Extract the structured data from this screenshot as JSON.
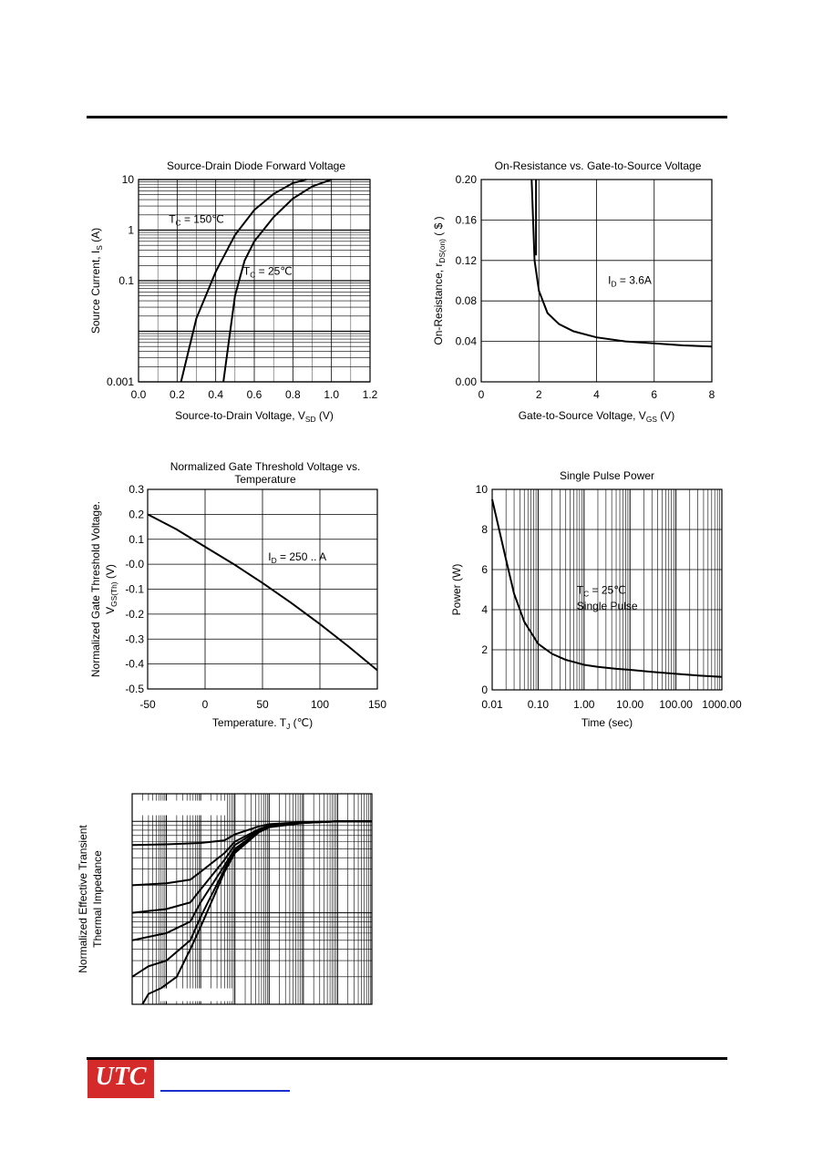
{
  "chart_data": [
    {
      "id": "c1",
      "type": "line",
      "title": "Source-Drain Diode Forward Voltage",
      "xlabel": "Source-to-Drain Voltage, V",
      "xlabel_sub": "SD",
      "xlabel_unit": " (V)",
      "ylabel": "Source Current, I",
      "ylabel_sub": "S",
      "ylabel_unit": " (A)",
      "xlim": [
        0,
        1.2
      ],
      "ylim": [
        0.001,
        10
      ],
      "yscale": "log",
      "xticks": [
        "0.0",
        "0.2",
        "0.4",
        "0.6",
        "0.8",
        "1.0",
        "1.2"
      ],
      "yticks": [
        {
          "v": 10,
          "label": "10"
        },
        {
          "v": 1,
          "label": "1"
        },
        {
          "v": 0.1,
          "label": "0.1"
        },
        {
          "v": 0.001,
          "label": "0.001"
        }
      ],
      "grid": true,
      "series": [
        {
          "x": [
            0.22,
            0.3,
            0.4,
            0.5,
            0.6,
            0.7,
            0.8,
            0.87
          ],
          "y": [
            0.001,
            0.018,
            0.15,
            0.8,
            2.5,
            5.2,
            8.5,
            10
          ]
        },
        {
          "x": [
            0.44,
            0.5,
            0.55,
            0.6,
            0.7,
            0.8,
            0.9,
            1.0
          ],
          "y": [
            0.001,
            0.05,
            0.25,
            0.6,
            1.8,
            4.2,
            7.3,
            10
          ]
        }
      ],
      "annotations": [
        {
          "text": "T",
          "sub": "C",
          "rest": " = 150℃",
          "x": 0.3,
          "y": 1.4
        },
        {
          "text": "T",
          "sub": "C",
          "rest": " = 25℃",
          "x": 0.67,
          "y": 0.13
        }
      ]
    },
    {
      "id": "c2",
      "type": "line",
      "title": "On-Resistance vs. Gate-to-Source Voltage",
      "xlabel": "Gate-to-Source Voltage, V",
      "xlabel_sub": "GS",
      "xlabel_unit": " (V)",
      "ylabel": "On-Resistance, r",
      "ylabel_sub": "DS(on)",
      "ylabel_unit": " (   $ )",
      "xlim": [
        0,
        8
      ],
      "ylim": [
        0,
        0.2
      ],
      "yscale": "linear",
      "xticks": [
        "0",
        "2",
        "4",
        "6",
        "8"
      ],
      "yticks": [
        {
          "v": 0.2,
          "label": "0.20"
        },
        {
          "v": 0.16,
          "label": "0.16"
        },
        {
          "v": 0.12,
          "label": "0.12"
        },
        {
          "v": 0.08,
          "label": "0.08"
        },
        {
          "v": 0.04,
          "label": "0.04"
        },
        {
          "v": 0,
          "label": "0.00"
        }
      ],
      "grid": true,
      "series": [
        {
          "x": [
            1.75,
            1.85,
            2.0,
            2.3,
            2.7,
            3.2,
            4.0,
            5.0,
            6.0,
            7.0,
            8.0
          ],
          "y": [
            0.2,
            0.12,
            0.09,
            0.068,
            0.057,
            0.05,
            0.044,
            0.04,
            0.038,
            0.036,
            0.035
          ]
        },
        {
          "x": [
            1.9,
            1.9
          ],
          "y": [
            0.2,
            0.125
          ]
        }
      ],
      "annotations": [
        {
          "text": "I",
          "sub": "D",
          "rest": " = 3.6A",
          "x": 4.4,
          "y": 0.097
        }
      ]
    },
    {
      "id": "c3",
      "type": "line",
      "title": "Normalized Gate Threshold Voltage vs.",
      "title2": "Temperature",
      "xlabel": "Temperature. T",
      "xlabel_sub": "J",
      "xlabel_unit": " (℃)",
      "ylabel": "Normalized Gate Threshold Voltage.",
      "ylabel2": "V",
      "ylabel2_sub": "GS(Th)",
      "ylabel2_unit": " (V)",
      "xlim": [
        -50,
        150
      ],
      "ylim": [
        -0.5,
        0.3
      ],
      "yscale": "linear",
      "xticks": [
        "-50",
        "0",
        "50",
        "100",
        "150"
      ],
      "yticks": [
        {
          "v": 0.3,
          "label": "0.3"
        },
        {
          "v": 0.2,
          "label": "0.2"
        },
        {
          "v": 0.1,
          "label": "0.1"
        },
        {
          "v": 0,
          "label": "-0.0"
        },
        {
          "v": -0.1,
          "label": "-0.1"
        },
        {
          "v": -0.2,
          "label": "-0.2"
        },
        {
          "v": -0.3,
          "label": "-0.3"
        },
        {
          "v": -0.4,
          "label": "-0.4"
        },
        {
          "v": -0.5,
          "label": "-0.5"
        }
      ],
      "grid": true,
      "series": [
        {
          "x": [
            -50,
            -25,
            0,
            25,
            50,
            75,
            100,
            125,
            150
          ],
          "y": [
            0.2,
            0.14,
            0.07,
            0.0,
            -0.075,
            -0.155,
            -0.24,
            -0.33,
            -0.425
          ]
        }
      ],
      "annotations": [
        {
          "text": "I",
          "sub": "D",
          "rest": " = 250 .. A",
          "x": 55,
          "y": 0.015
        }
      ]
    },
    {
      "id": "c4",
      "type": "line",
      "title": "Single Pulse Power",
      "xlabel": "Time (sec)",
      "ylabel": "Power (W)",
      "xlim": [
        0.01,
        1000
      ],
      "ylim": [
        0,
        10
      ],
      "xscale": "log",
      "yscale": "linear",
      "xticks": [
        {
          "v": 0.01,
          "label": "0.01"
        },
        {
          "v": 0.1,
          "label": "0.10"
        },
        {
          "v": 1,
          "label": "1.00"
        },
        {
          "v": 10,
          "label": "10.00"
        },
        {
          "v": 100,
          "label": "100.00"
        },
        {
          "v": 1000,
          "label": "1000.00"
        }
      ],
      "yticks": [
        {
          "v": 10,
          "label": "10"
        },
        {
          "v": 8,
          "label": "8"
        },
        {
          "v": 6,
          "label": "6"
        },
        {
          "v": 4,
          "label": "4"
        },
        {
          "v": 2,
          "label": "2"
        },
        {
          "v": 0,
          "label": "0"
        }
      ],
      "grid": true,
      "series": [
        {
          "x": [
            0.01,
            0.02,
            0.03,
            0.05,
            0.1,
            0.2,
            0.4,
            0.7,
            1,
            2,
            5,
            10,
            30,
            100,
            300,
            1000
          ],
          "y": [
            9.5,
            6.5,
            4.8,
            3.4,
            2.3,
            1.8,
            1.5,
            1.35,
            1.25,
            1.15,
            1.05,
            1.0,
            0.9,
            0.8,
            0.72,
            0.65
          ]
        }
      ],
      "annotations": [
        {
          "text": "T",
          "sub": "C",
          "rest": " = 25℃",
          "x": 1.0,
          "y": 4.8
        },
        {
          "text": "Single Pulse",
          "sub": "",
          "rest": "",
          "x": 1.0,
          "y": 4.0
        }
      ]
    },
    {
      "id": "c5",
      "type": "line",
      "title": "",
      "ylabel": "Normalized Effective Transient",
      "ylabel2": "Thermal Impedance",
      "xscale": "log",
      "yscale": "log",
      "xlim": [
        0.0001,
        1000
      ],
      "ylim": [
        0.01,
        2
      ],
      "grid": true,
      "series": [
        {
          "x": [
            0.0001,
            0.001,
            0.01,
            0.05,
            0.1,
            0.5,
            1,
            10,
            100,
            1000
          ],
          "y": [
            0.55,
            0.56,
            0.58,
            0.62,
            0.72,
            0.88,
            0.93,
            0.98,
            1.0,
            1.0
          ]
        },
        {
          "x": [
            0.0001,
            0.001,
            0.005,
            0.01,
            0.05,
            0.1,
            0.5,
            1,
            10,
            100,
            1000
          ],
          "y": [
            0.2,
            0.21,
            0.23,
            0.28,
            0.45,
            0.6,
            0.82,
            0.9,
            0.97,
            1.0,
            1.0
          ]
        },
        {
          "x": [
            0.0001,
            0.001,
            0.005,
            0.01,
            0.05,
            0.1,
            0.5,
            1,
            10,
            100,
            1000
          ],
          "y": [
            0.1,
            0.11,
            0.13,
            0.18,
            0.38,
            0.55,
            0.8,
            0.89,
            0.97,
            1.0,
            1.0
          ]
        },
        {
          "x": [
            0.0001,
            0.001,
            0.005,
            0.01,
            0.05,
            0.1,
            0.5,
            1,
            10,
            100,
            1000
          ],
          "y": [
            0.05,
            0.06,
            0.08,
            0.13,
            0.33,
            0.5,
            0.78,
            0.88,
            0.96,
            1.0,
            1.0
          ]
        },
        {
          "x": [
            0.0001,
            0.0003,
            0.001,
            0.005,
            0.01,
            0.05,
            0.1,
            0.5,
            1,
            10,
            100,
            1000
          ],
          "y": [
            0.02,
            0.026,
            0.03,
            0.05,
            0.09,
            0.3,
            0.47,
            0.77,
            0.87,
            0.96,
            1.0,
            1.0
          ]
        },
        {
          "x": [
            0.0002,
            0.0003,
            0.0007,
            0.002,
            0.005,
            0.01,
            0.05,
            0.1,
            0.5,
            1,
            10,
            100,
            1000
          ],
          "y": [
            0.01,
            0.013,
            0.015,
            0.02,
            0.04,
            0.07,
            0.28,
            0.45,
            0.76,
            0.86,
            0.96,
            1.0,
            1.0
          ]
        }
      ]
    }
  ]
}
